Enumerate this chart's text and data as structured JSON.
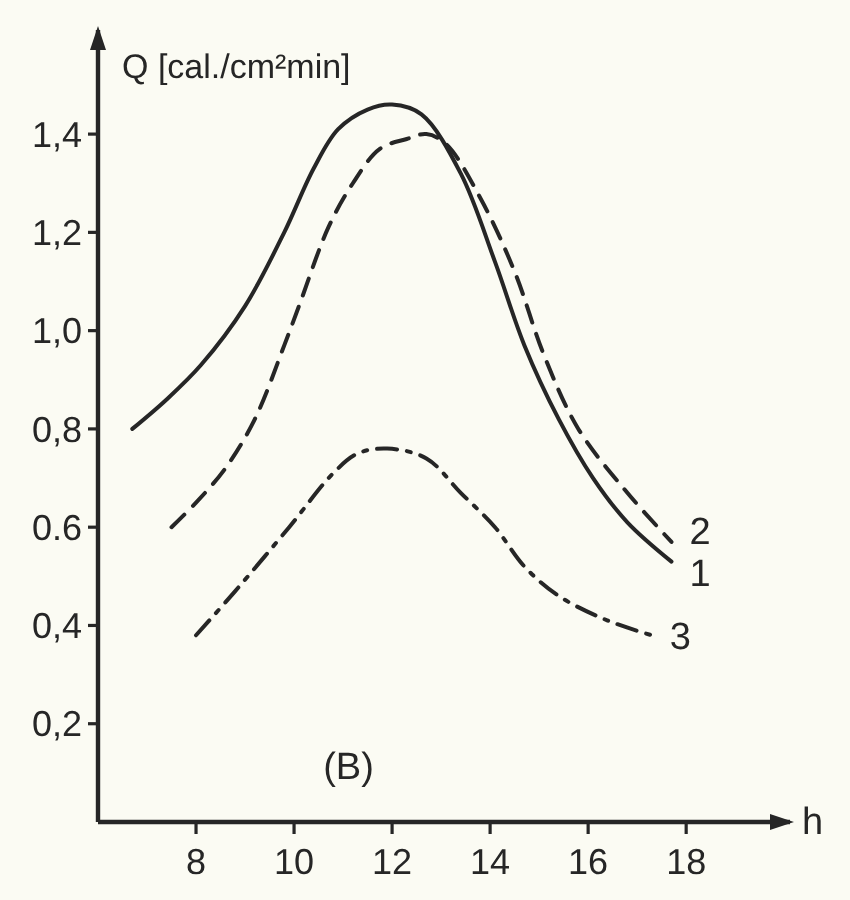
{
  "chart_data": {
    "type": "line",
    "ylabel": "Q [cal./cm²min]",
    "xlabel": "h",
    "annotations": [
      "(B)"
    ],
    "xlim": [
      6,
      20.2
    ],
    "ylim": [
      0,
      1.62
    ],
    "xticks": [
      8,
      10,
      12,
      14,
      16,
      18
    ],
    "yticks": [
      {
        "value": 0.2,
        "label": "0,2"
      },
      {
        "value": 0.4,
        "label": "0,4"
      },
      0.6,
      {
        "value": 0.8,
        "label": "0,8"
      },
      {
        "value": 1.0,
        "label": "1,0"
      },
      {
        "value": 1.2,
        "label": "1,2"
      },
      {
        "value": 1.4,
        "label": "1,4"
      }
    ],
    "series": [
      {
        "name": "1",
        "color": "#262626",
        "line_style": "solid",
        "x": [
          6.7,
          7.4,
          8.1,
          9.0,
          9.8,
          10.4,
          10.9,
          11.5,
          12.0,
          12.6,
          13.4,
          14.1,
          14.7,
          15.4,
          16.1,
          16.8,
          17.7
        ],
        "values": [
          0.8,
          0.86,
          0.93,
          1.05,
          1.2,
          1.33,
          1.41,
          1.45,
          1.46,
          1.44,
          1.32,
          1.14,
          0.97,
          0.82,
          0.7,
          0.61,
          0.53
        ]
      },
      {
        "name": "2",
        "color": "#262626",
        "line_style": "dashed",
        "x": [
          7.5,
          8.0,
          8.6,
          9.2,
          9.8,
          10.1,
          10.7,
          11.2,
          11.75,
          12.3,
          12.7,
          13.1,
          13.8,
          14.5,
          15.1,
          15.8,
          16.8,
          17.7
        ],
        "values": [
          0.6,
          0.65,
          0.72,
          0.82,
          0.97,
          1.05,
          1.21,
          1.3,
          1.37,
          1.39,
          1.4,
          1.38,
          1.27,
          1.12,
          0.95,
          0.8,
          0.67,
          0.57
        ]
      },
      {
        "name": "3",
        "color": "#262626",
        "line_style": "dashdot",
        "x": [
          8.0,
          8.8,
          9.9,
          10.8,
          11.3,
          11.9,
          12.7,
          13.4,
          14.1,
          14.7,
          15.4,
          16.4,
          17.3
        ],
        "values": [
          0.38,
          0.47,
          0.6,
          0.71,
          0.75,
          0.76,
          0.74,
          0.67,
          0.6,
          0.52,
          0.46,
          0.41,
          0.38
        ]
      }
    ]
  }
}
